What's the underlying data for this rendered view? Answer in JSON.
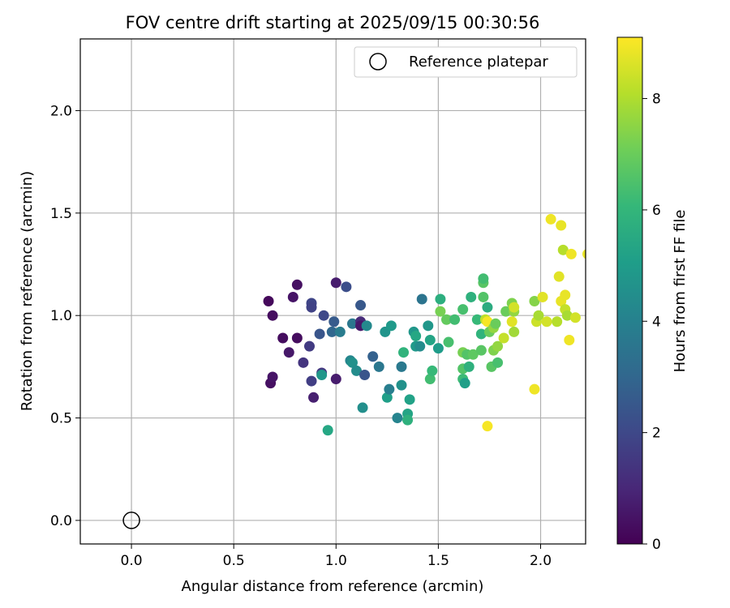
{
  "chart_data": {
    "type": "scatter",
    "title": "FOV centre drift starting at 2025/09/15 00:30:56",
    "xlabel": "Angular distance from reference (arcmin)",
    "ylabel": "Rotation from reference (arcmin)",
    "xlim": [
      -0.25,
      2.22
    ],
    "ylim": [
      -0.115,
      2.35
    ],
    "xticks": [
      0.0,
      0.5,
      1.0,
      1.5,
      2.0
    ],
    "yticks": [
      0.0,
      0.5,
      1.0,
      1.5,
      2.0
    ],
    "xtick_labels": [
      "0.0",
      "0.5",
      "1.0",
      "1.5",
      "2.0"
    ],
    "ytick_labels": [
      "0.0",
      "0.5",
      "1.0",
      "1.5",
      "2.0"
    ],
    "grid": true,
    "legend": {
      "label": "Reference platepar",
      "placement": "top-right",
      "marker": "open-circle"
    },
    "reference_point": {
      "x": 0.0,
      "y": 0.0
    },
    "colorbar": {
      "label": "Hours from first FF file",
      "colormap": "viridis",
      "range": [
        0,
        9.1
      ],
      "ticks": [
        0,
        2,
        4,
        6,
        8
      ],
      "tick_labels": [
        "0",
        "2",
        "4",
        "6",
        "8"
      ]
    },
    "points": [
      {
        "x": 0.67,
        "y": 1.07,
        "c": 0.2
      },
      {
        "x": 0.69,
        "y": 1.0,
        "c": 0.3
      },
      {
        "x": 0.68,
        "y": 0.67,
        "c": 0.4
      },
      {
        "x": 0.69,
        "y": 0.7,
        "c": 0.5
      },
      {
        "x": 0.74,
        "y": 0.89,
        "c": 0.3
      },
      {
        "x": 0.77,
        "y": 0.82,
        "c": 0.6
      },
      {
        "x": 0.79,
        "y": 1.09,
        "c": 0.5
      },
      {
        "x": 0.81,
        "y": 1.15,
        "c": 0.4
      },
      {
        "x": 0.81,
        "y": 0.89,
        "c": 0.3
      },
      {
        "x": 0.84,
        "y": 0.77,
        "c": 1.4
      },
      {
        "x": 0.87,
        "y": 0.85,
        "c": 1.6
      },
      {
        "x": 0.88,
        "y": 1.06,
        "c": 1.9
      },
      {
        "x": 0.88,
        "y": 1.04,
        "c": 1.8
      },
      {
        "x": 0.88,
        "y": 0.68,
        "c": 1.7
      },
      {
        "x": 0.89,
        "y": 0.6,
        "c": 0.8
      },
      {
        "x": 0.92,
        "y": 0.91,
        "c": 2.4
      },
      {
        "x": 0.93,
        "y": 0.72,
        "c": 1.5
      },
      {
        "x": 0.93,
        "y": 0.71,
        "c": 4.8
      },
      {
        "x": 0.94,
        "y": 1.0,
        "c": 2.0
      },
      {
        "x": 0.96,
        "y": 0.44,
        "c": 5.4
      },
      {
        "x": 0.98,
        "y": 0.92,
        "c": 3.0
      },
      {
        "x": 0.99,
        "y": 0.97,
        "c": 2.6
      },
      {
        "x": 1.0,
        "y": 1.16,
        "c": 0.7
      },
      {
        "x": 1.0,
        "y": 0.69,
        "c": 0.7
      },
      {
        "x": 1.02,
        "y": 0.92,
        "c": 3.8
      },
      {
        "x": 1.05,
        "y": 1.14,
        "c": 2.2
      },
      {
        "x": 1.07,
        "y": 0.78,
        "c": 4.2
      },
      {
        "x": 1.08,
        "y": 0.77,
        "c": 4.6
      },
      {
        "x": 1.08,
        "y": 0.96,
        "c": 3.6
      },
      {
        "x": 1.1,
        "y": 0.73,
        "c": 4.4
      },
      {
        "x": 1.12,
        "y": 0.97,
        "c": 1.1
      },
      {
        "x": 1.12,
        "y": 1.05,
        "c": 2.5
      },
      {
        "x": 1.12,
        "y": 0.95,
        "c": 0.6
      },
      {
        "x": 1.13,
        "y": 0.55,
        "c": 4.5
      },
      {
        "x": 1.14,
        "y": 0.71,
        "c": 2.4
      },
      {
        "x": 1.15,
        "y": 0.95,
        "c": 4.3
      },
      {
        "x": 1.18,
        "y": 0.8,
        "c": 2.8
      },
      {
        "x": 1.21,
        "y": 0.75,
        "c": 3.6
      },
      {
        "x": 1.24,
        "y": 0.92,
        "c": 4.7
      },
      {
        "x": 1.25,
        "y": 0.6,
        "c": 5.1
      },
      {
        "x": 1.26,
        "y": 0.64,
        "c": 3.9
      },
      {
        "x": 1.27,
        "y": 0.95,
        "c": 4.9
      },
      {
        "x": 1.3,
        "y": 0.5,
        "c": 4.1
      },
      {
        "x": 1.32,
        "y": 0.75,
        "c": 3.7
      },
      {
        "x": 1.32,
        "y": 0.66,
        "c": 4.6
      },
      {
        "x": 1.33,
        "y": 0.82,
        "c": 5.9
      },
      {
        "x": 1.35,
        "y": 0.52,
        "c": 5.3
      },
      {
        "x": 1.35,
        "y": 0.49,
        "c": 5.8
      },
      {
        "x": 1.36,
        "y": 0.59,
        "c": 5.2
      },
      {
        "x": 1.38,
        "y": 0.92,
        "c": 4.8
      },
      {
        "x": 1.39,
        "y": 0.9,
        "c": 5.4
      },
      {
        "x": 1.39,
        "y": 0.85,
        "c": 4.9
      },
      {
        "x": 1.41,
        "y": 0.85,
        "c": 4.4
      },
      {
        "x": 1.42,
        "y": 1.08,
        "c": 3.5
      },
      {
        "x": 1.45,
        "y": 0.95,
        "c": 4.8
      },
      {
        "x": 1.46,
        "y": 0.88,
        "c": 5.3
      },
      {
        "x": 1.46,
        "y": 0.69,
        "c": 6.3
      },
      {
        "x": 1.47,
        "y": 0.73,
        "c": 6.1
      },
      {
        "x": 1.5,
        "y": 0.84,
        "c": 5.0
      },
      {
        "x": 1.51,
        "y": 1.08,
        "c": 5.7
      },
      {
        "x": 1.51,
        "y": 1.02,
        "c": 7.2
      },
      {
        "x": 1.54,
        "y": 0.98,
        "c": 6.9
      },
      {
        "x": 1.55,
        "y": 0.87,
        "c": 6.4
      },
      {
        "x": 1.58,
        "y": 0.98,
        "c": 6.3
      },
      {
        "x": 1.62,
        "y": 0.74,
        "c": 6.6
      },
      {
        "x": 1.62,
        "y": 0.82,
        "c": 7.2
      },
      {
        "x": 1.62,
        "y": 0.69,
        "c": 6.2
      },
      {
        "x": 1.62,
        "y": 1.03,
        "c": 6.4
      },
      {
        "x": 1.63,
        "y": 0.67,
        "c": 5.1
      },
      {
        "x": 1.64,
        "y": 0.81,
        "c": 6.6
      },
      {
        "x": 1.65,
        "y": 0.75,
        "c": 5.8
      },
      {
        "x": 1.66,
        "y": 1.09,
        "c": 5.8
      },
      {
        "x": 1.67,
        "y": 0.81,
        "c": 6.8
      },
      {
        "x": 1.69,
        "y": 0.98,
        "c": 6.1
      },
      {
        "x": 1.71,
        "y": 0.91,
        "c": 5.9
      },
      {
        "x": 1.71,
        "y": 0.83,
        "c": 6.7
      },
      {
        "x": 1.72,
        "y": 1.09,
        "c": 6.6
      },
      {
        "x": 1.72,
        "y": 1.16,
        "c": 6.7
      },
      {
        "x": 1.72,
        "y": 1.18,
        "c": 6.3
      },
      {
        "x": 1.73,
        "y": 0.98,
        "c": 8.2
      },
      {
        "x": 1.74,
        "y": 0.97,
        "c": 9.0
      },
      {
        "x": 1.74,
        "y": 1.04,
        "c": 5.6
      },
      {
        "x": 1.74,
        "y": 0.46,
        "c": 9.0
      },
      {
        "x": 1.75,
        "y": 0.92,
        "c": 7.0
      },
      {
        "x": 1.76,
        "y": 0.75,
        "c": 6.7
      },
      {
        "x": 1.77,
        "y": 0.83,
        "c": 7.3
      },
      {
        "x": 1.77,
        "y": 0.94,
        "c": 7.6
      },
      {
        "x": 1.78,
        "y": 0.96,
        "c": 7.0
      },
      {
        "x": 1.79,
        "y": 0.85,
        "c": 7.6
      },
      {
        "x": 1.79,
        "y": 0.77,
        "c": 6.4
      },
      {
        "x": 1.82,
        "y": 0.89,
        "c": 8.3
      },
      {
        "x": 1.83,
        "y": 1.02,
        "c": 7.0
      },
      {
        "x": 1.86,
        "y": 1.06,
        "c": 7.3
      },
      {
        "x": 1.86,
        "y": 0.97,
        "c": 8.7
      },
      {
        "x": 1.87,
        "y": 1.02,
        "c": 7.6
      },
      {
        "x": 1.87,
        "y": 0.92,
        "c": 7.8
      },
      {
        "x": 1.87,
        "y": 1.04,
        "c": 8.5
      },
      {
        "x": 1.97,
        "y": 1.07,
        "c": 7.4
      },
      {
        "x": 1.97,
        "y": 0.64,
        "c": 8.9
      },
      {
        "x": 1.98,
        "y": 0.97,
        "c": 8.4
      },
      {
        "x": 1.99,
        "y": 1.0,
        "c": 7.9
      },
      {
        "x": 2.01,
        "y": 1.09,
        "c": 8.7
      },
      {
        "x": 2.03,
        "y": 0.97,
        "c": 8.5
      },
      {
        "x": 2.05,
        "y": 1.47,
        "c": 8.9
      },
      {
        "x": 2.08,
        "y": 0.97,
        "c": 8.1
      },
      {
        "x": 2.09,
        "y": 1.19,
        "c": 8.7
      },
      {
        "x": 2.1,
        "y": 1.07,
        "c": 8.8
      },
      {
        "x": 2.1,
        "y": 1.44,
        "c": 8.8
      },
      {
        "x": 2.11,
        "y": 1.32,
        "c": 8.1
      },
      {
        "x": 2.12,
        "y": 1.03,
        "c": 8.3
      },
      {
        "x": 2.12,
        "y": 1.1,
        "c": 8.8
      },
      {
        "x": 2.13,
        "y": 1.0,
        "c": 7.9
      },
      {
        "x": 2.14,
        "y": 0.88,
        "c": 8.9
      },
      {
        "x": 2.15,
        "y": 1.3,
        "c": 8.9
      },
      {
        "x": 2.17,
        "y": 0.99,
        "c": 8.5
      },
      {
        "x": 2.23,
        "y": 1.3,
        "c": 8.8
      }
    ]
  }
}
